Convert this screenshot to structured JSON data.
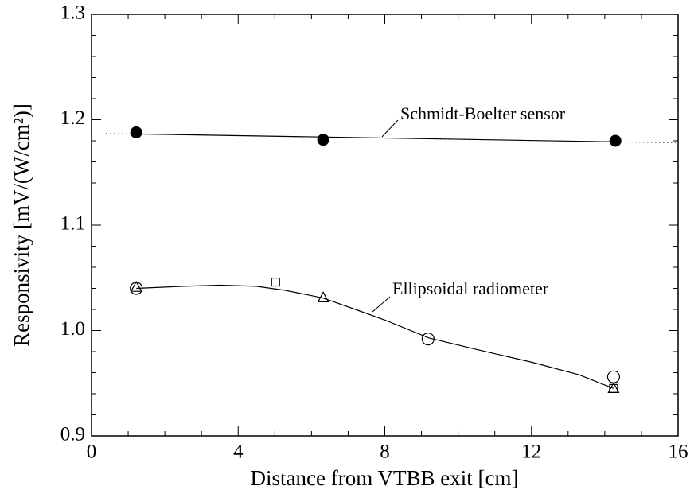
{
  "chart_data": {
    "type": "scatter",
    "xlabel": "Distance from VTBB exit [cm]",
    "ylabel": "Responsivity [mV/(W/cm²)]",
    "xlim": [
      0,
      16
    ],
    "xticks": [
      0,
      4,
      8,
      12,
      16
    ],
    "xminorticks": [
      1,
      2,
      3,
      5,
      6,
      7,
      9,
      10,
      11,
      13,
      14,
      15
    ],
    "ylim": [
      0.9,
      1.3
    ],
    "yticks": [
      0.9,
      {
        "value": 1,
        "label": "1.0"
      },
      1.1,
      1.2,
      1.3
    ],
    "yminorticks": [
      0.92,
      0.94,
      0.96,
      0.98,
      1.02,
      1.04,
      1.06,
      1.08,
      1.12,
      1.14,
      1.16,
      1.18,
      1.22,
      1.24,
      1.26,
      1.28
    ],
    "series": [
      {
        "marker": "filled-circle",
        "x": [
          1.22,
          6.32,
          14.29
        ],
        "values": [
          1.188,
          1.181,
          1.18
        ]
      },
      {
        "marker": "circle",
        "x": [
          1.22,
          9.18,
          14.24
        ],
        "values": [
          1.04,
          0.992,
          0.956
        ]
      },
      {
        "marker": "triangle",
        "x": [
          1.22,
          6.32,
          14.24
        ],
        "values": [
          1.041,
          1.031,
          0.945
        ]
      },
      {
        "marker": "square",
        "x": [
          5.02,
          14.24
        ],
        "values": [
          1.046,
          0.945
        ]
      }
    ],
    "fits": [
      {
        "style": "dotted-solid",
        "x": [
          0.4,
          16
        ],
        "values": [
          1.187,
          1.178
        ]
      },
      {
        "style": "solid",
        "x": [
          1.22,
          2.5,
          3.5,
          4.5,
          5.3,
          6.3,
          7.2,
          8,
          9.2,
          10.5,
          12,
          13.3,
          14.24
        ],
        "values": [
          1.04,
          1.042,
          1.043,
          1.042,
          1.038,
          1.031,
          1.02,
          1.01,
          0.993,
          0.982,
          0.97,
          0.958,
          0.945
        ]
      }
    ],
    "annotations": [
      "Schmidt-Boelter sensor",
      "Ellipsoidal radiometer"
    ]
  }
}
